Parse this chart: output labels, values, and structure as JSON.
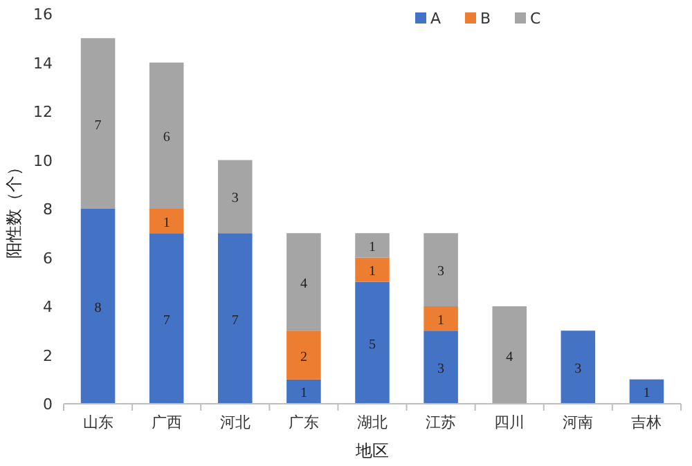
{
  "chart_data": {
    "type": "bar",
    "stacked": true,
    "xlabel": "地区",
    "ylabel": "阳性数（个）",
    "categories": [
      "山东",
      "广西",
      "河北",
      "广东",
      "湖北",
      "江苏",
      "四川",
      "河南",
      "吉林"
    ],
    "series": [
      {
        "name": "A",
        "color": "#4472c4",
        "values": [
          8,
          7,
          7,
          1,
          5,
          3,
          null,
          3,
          1
        ]
      },
      {
        "name": "B",
        "color": "#ed7d31",
        "values": [
          null,
          1,
          null,
          2,
          1,
          1,
          null,
          null,
          null
        ]
      },
      {
        "name": "C",
        "color": "#a5a5a5",
        "values": [
          7,
          6,
          3,
          4,
          1,
          3,
          4,
          null,
          null
        ]
      }
    ],
    "ylim": [
      0,
      16
    ],
    "yticks": [
      0,
      2,
      4,
      6,
      8,
      10,
      12,
      14,
      16
    ],
    "legend": "top",
    "data_labels": true
  }
}
